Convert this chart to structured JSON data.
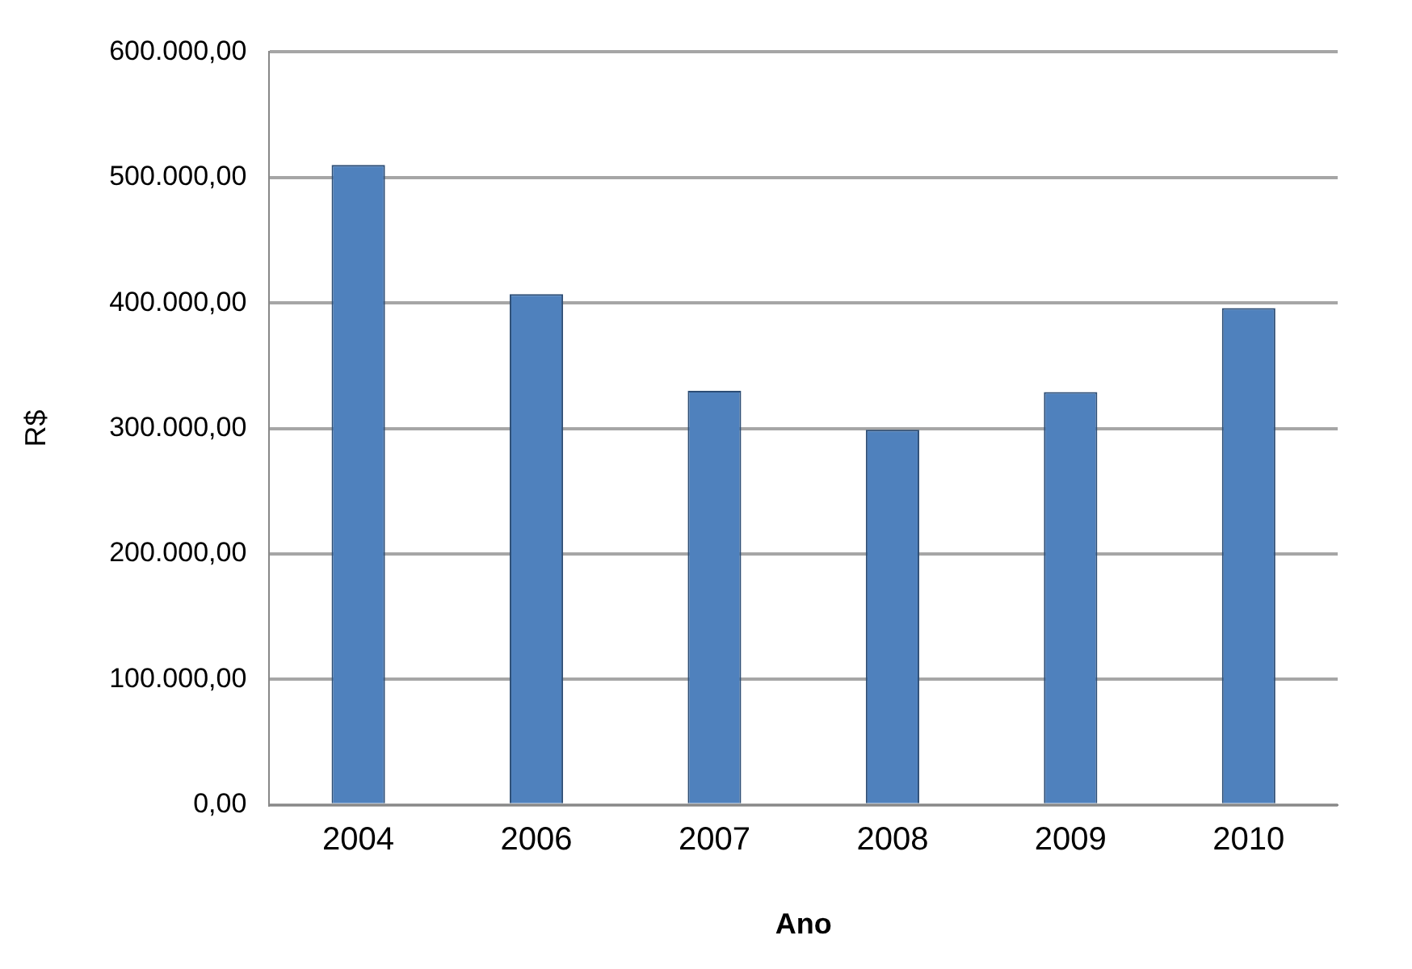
{
  "chart_data": {
    "type": "bar",
    "xlabel": "Ano",
    "ylabel": "R$",
    "categories": [
      "2004",
      "2006",
      "2007",
      "2008",
      "2009",
      "2010"
    ],
    "values": [
      510000,
      407000,
      330000,
      299000,
      329000,
      396000
    ],
    "color": "#4f81bd",
    "ylim": [
      0,
      600000
    ],
    "yticks": [
      {
        "value": 0,
        "label": "0,00"
      },
      {
        "value": 100000,
        "label": "100.000,00"
      },
      {
        "value": 200000,
        "label": "200.000,00"
      },
      {
        "value": 300000,
        "label": "300.000,00"
      },
      {
        "value": 400000,
        "label": "400.000,00"
      },
      {
        "value": 500000,
        "label": "500.000,00"
      },
      {
        "value": 600000,
        "label": "600.000,00"
      }
    ],
    "grid": "y",
    "legend": false
  }
}
